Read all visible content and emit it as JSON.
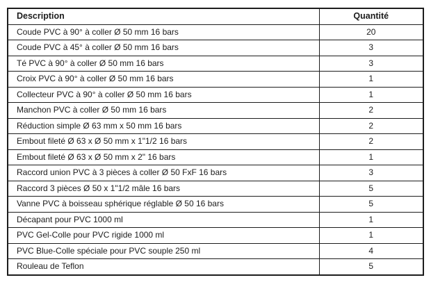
{
  "colors": {
    "border": "#1c1c1c",
    "text": "#1c1c1c",
    "background": "#ffffff"
  },
  "table": {
    "header": {
      "description": "Description",
      "quantity": "Quantité"
    },
    "rows": [
      {
        "description": "Coude PVC à 90° à coller Ø 50 mm 16 bars",
        "quantity": "20"
      },
      {
        "description": "Coude PVC à 45° à coller Ø 50 mm 16 bars",
        "quantity": "3"
      },
      {
        "description": "Té PVC à 90° à coller Ø 50 mm 16 bars",
        "quantity": "3"
      },
      {
        "description": "Croix PVC à 90° à coller Ø 50 mm 16 bars",
        "quantity": "1"
      },
      {
        "description": "Collecteur PVC à 90° à coller Ø 50 mm 16 bars",
        "quantity": "1"
      },
      {
        "description": "Manchon PVC à coller Ø 50 mm 16 bars",
        "quantity": "2"
      },
      {
        "description": "Réduction simple Ø 63 mm x 50 mm 16 bars",
        "quantity": "2"
      },
      {
        "description": "Embout fileté Ø 63 x Ø 50 mm x 1\"1/2 16 bars",
        "quantity": "2"
      },
      {
        "description": "Embout fileté Ø 63 x Ø 50 mm x 2\" 16 bars",
        "quantity": "1"
      },
      {
        "description": "Raccord union PVC à 3 pièces à coller Ø 50 FxF 16 bars",
        "quantity": "3"
      },
      {
        "description": "Raccord 3 pièces Ø 50 x 1\"1/2 mâle 16 bars",
        "quantity": "5"
      },
      {
        "description": "Vanne PVC à boisseau sphérique réglable Ø 50 16 bars",
        "quantity": "5"
      },
      {
        "description": "Décapant pour PVC 1000 ml",
        "quantity": "1"
      },
      {
        "description": "PVC Gel-Colle pour PVC rigide 1000 ml",
        "quantity": "1"
      },
      {
        "description": "PVC Blue-Colle spéciale pour PVC souple 250 ml",
        "quantity": "4"
      },
      {
        "description": "Rouleau de Teflon",
        "quantity": "5"
      }
    ]
  }
}
